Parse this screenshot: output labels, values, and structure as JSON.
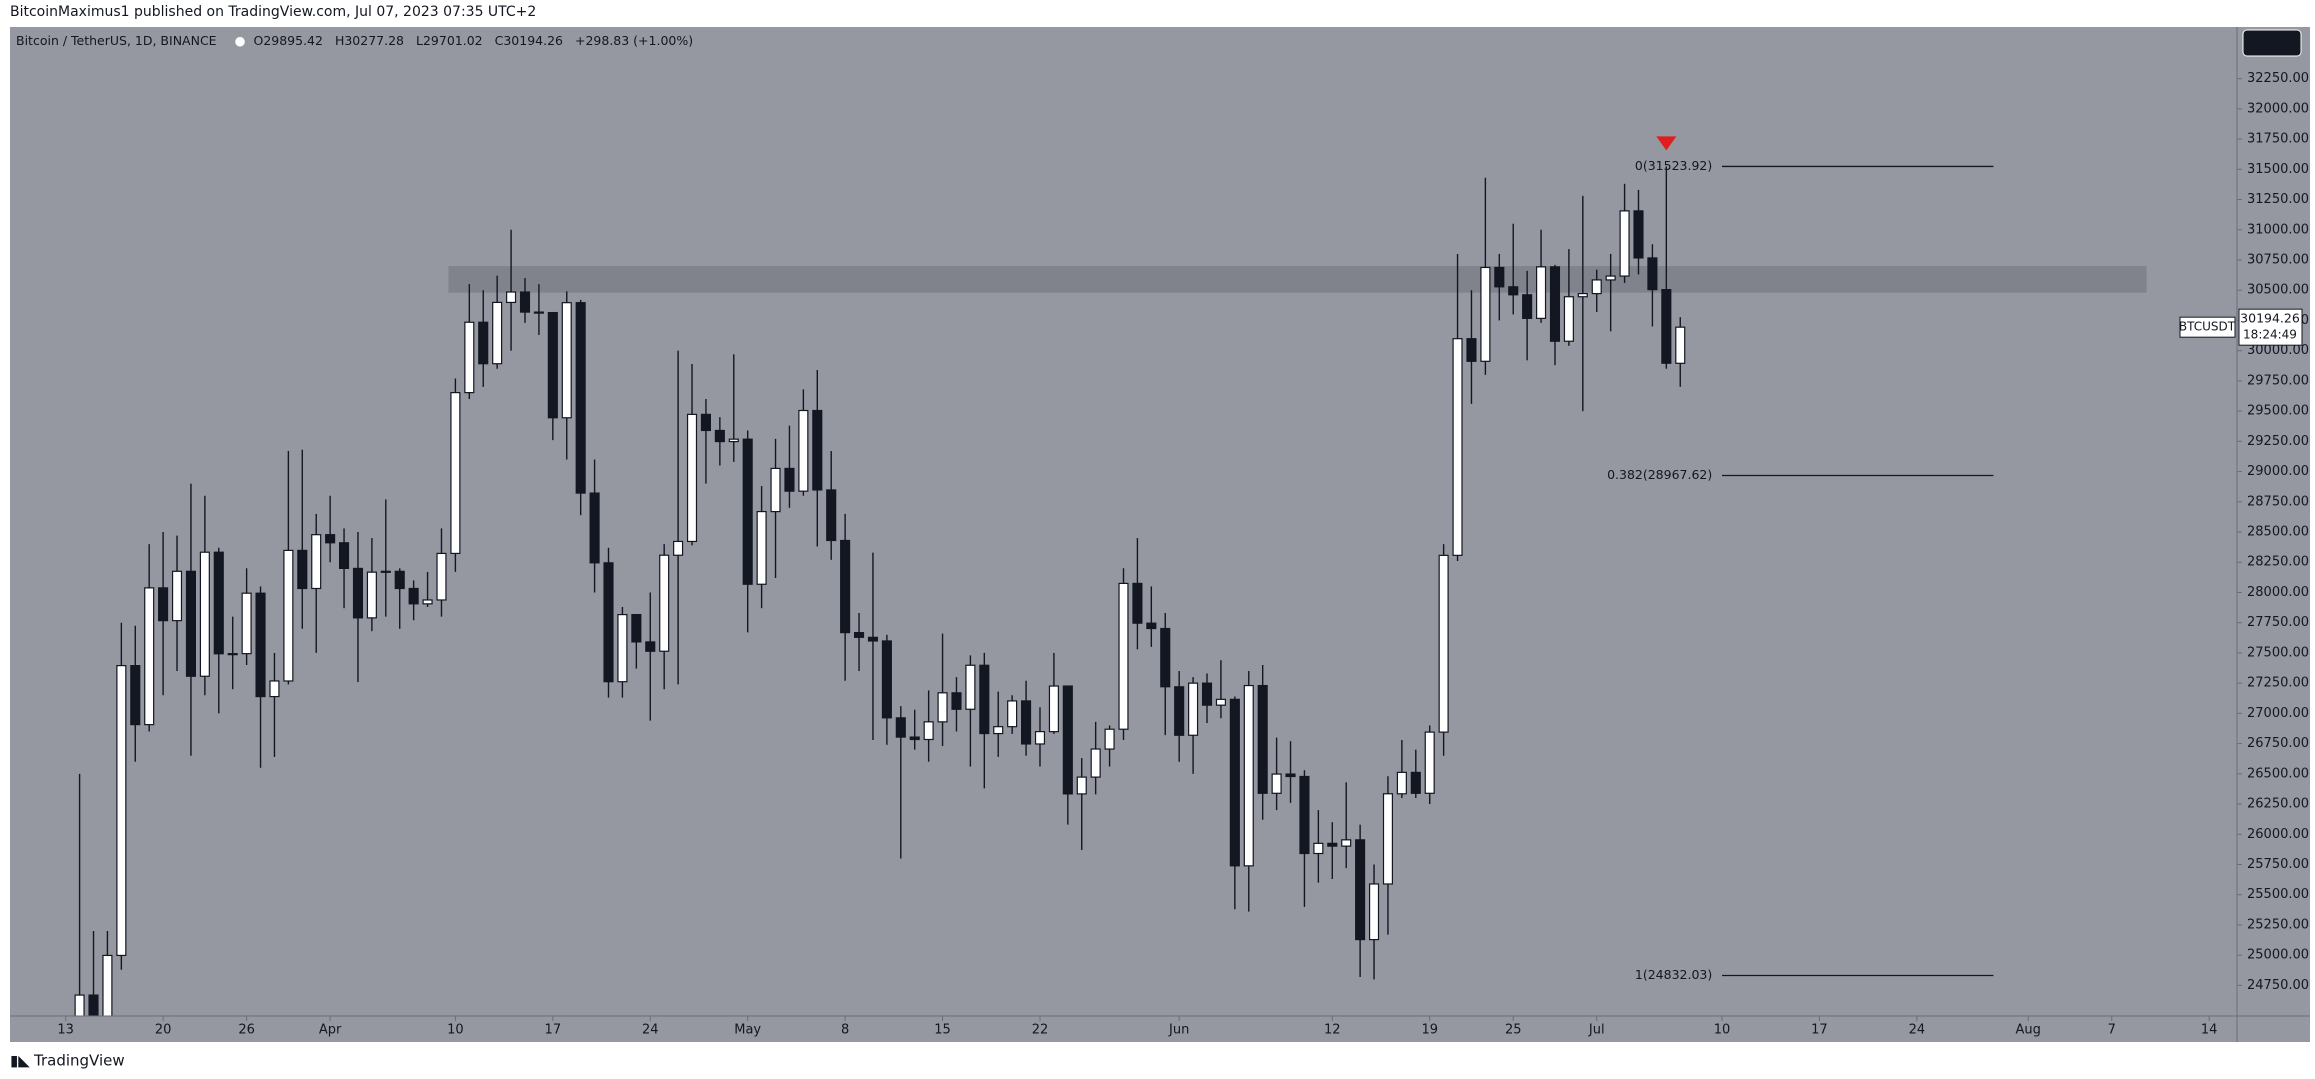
{
  "published": "BitcoinMaximus1 published on TradingView.com, Jul 07, 2023 07:35 UTC+2",
  "footer": "TradingView",
  "chart_data": {
    "type": "candlestick",
    "header": {
      "symbol": "Bitcoin / TetherUS, 1D, BINANCE",
      "ohlc": [
        {
          "label": "O",
          "value": 29895.42
        },
        {
          "label": "H",
          "value": 30277.28
        },
        {
          "label": "L",
          "value": 29701.02
        },
        {
          "label": "C",
          "value": 30194.26
        }
      ],
      "change": "+298.83 (+1.00%)"
    },
    "symbol_tag": "BTCUSDT",
    "countdown": "18:24:49",
    "up_color": "#ffffff",
    "down_color": "#131722",
    "background": "#9598a1",
    "zone_color": "#7c7f87",
    "resistance_zone": [
      30480,
      30700
    ],
    "open": [
      24110,
      24670,
      24285,
      24998,
      27395,
      26907,
      28038,
      27767,
      28175,
      27307,
      28333,
      27493,
      27494,
      27994,
      27139,
      27268,
      28348,
      28033,
      28478,
      28411,
      28199,
      27790,
      28168,
      28175,
      28033,
      27906,
      27938,
      28323,
      29653,
      30235,
      29892,
      30399,
      30485,
      30319,
      30315,
      29445,
      30397,
      28822,
      28245,
      27262,
      27817,
      27591,
      27514,
      28308,
      28422,
      29473,
      29340,
      29248,
      29268,
      28068,
      28669,
      29026,
      28838,
      29505,
      28848,
      28430,
      27668,
      27629,
      27599,
      26963,
      26804,
      26784,
      26930,
      27170,
      27034,
      27398,
      26833,
      26890,
      27103,
      26747,
      26849,
      27226,
      26334,
      26473,
      26705,
      26869,
      28075,
      27746,
      27702,
      27220,
      26819,
      27250,
      27068,
      27116,
      25739,
      27230,
      26339,
      26498,
      26478,
      25841,
      25925,
      25902,
      25954,
      25129,
      25589,
      26335,
      26512,
      26339,
      26845,
      28307,
      30099,
      29912,
      30688,
      30528,
      30462,
      30267,
      30693,
      30078,
      30446,
      30472,
      30585,
      30617,
      31156,
      30767,
      30505,
      29895.42
    ],
    "high": [
      26500,
      25200,
      25200,
      27750,
      27725,
      28400,
      28500,
      28470,
      28900,
      28800,
      28370,
      27800,
      28200,
      28050,
      27500,
      29170,
      29180,
      28650,
      28800,
      28530,
      28500,
      28450,
      28770,
      28200,
      28100,
      28170,
      28530,
      29770,
      30550,
      30500,
      30620,
      31000,
      30600,
      30550,
      30320,
      30490,
      30420,
      29100,
      28370,
      27880,
      27820,
      28000,
      28400,
      30000,
      29890,
      29600,
      29450,
      29970,
      29340,
      28880,
      29270,
      29380,
      29680,
      29840,
      29170,
      28650,
      27830,
      28330,
      27650,
      27060,
      27030,
      27190,
      27660,
      27300,
      27480,
      27500,
      27180,
      27150,
      27270,
      27050,
      27500,
      27230,
      26630,
      26930,
      26900,
      28200,
      28450,
      28050,
      27830,
      27350,
      27300,
      27330,
      27440,
      27140,
      27350,
      27400,
      26800,
      26770,
      26530,
      26200,
      26100,
      26430,
      26080,
      25750,
      26480,
      26780,
      26700,
      26900,
      28400,
      30800,
      30500,
      31430,
      30800,
      31050,
      30660,
      31000,
      30710,
      30840,
      31280,
      30670,
      30800,
      31380,
      31330,
      30880,
      31523.92,
      30277.28
    ],
    "low": [
      24050,
      23900,
      24120,
      24880,
      26600,
      26850,
      27150,
      27350,
      26650,
      27150,
      27000,
      27200,
      27400,
      26550,
      26640,
      27240,
      27700,
      27500,
      28250,
      27870,
      27260,
      27680,
      27800,
      27700,
      27770,
      27880,
      27800,
      28170,
      29600,
      29700,
      29850,
      30000,
      30230,
      30130,
      29260,
      29100,
      28640,
      28000,
      27130,
      27130,
      27370,
      26940,
      27200,
      27240,
      28390,
      28900,
      29050,
      29080,
      27670,
      27870,
      28120,
      28700,
      28800,
      28380,
      28270,
      27270,
      27350,
      26780,
      26740,
      25800,
      26700,
      26600,
      26730,
      26850,
      26560,
      26380,
      26640,
      26830,
      26650,
      26560,
      26830,
      26080,
      25870,
      26330,
      26560,
      26780,
      27530,
      27550,
      26820,
      26600,
      26500,
      26920,
      26960,
      25380,
      25360,
      26120,
      26200,
      26260,
      25400,
      25600,
      25630,
      25720,
      24820,
      24800,
      25170,
      26300,
      26300,
      26250,
      26650,
      28260,
      29560,
      29800,
      30250,
      30300,
      29920,
      30230,
      29880,
      30040,
      29500,
      30320,
      30160,
      30560,
      30630,
      30200,
      29850,
      29701.02
    ],
    "close": [
      24670,
      24285,
      24998,
      27395,
      26907,
      28038,
      27767,
      28175,
      27307,
      28333,
      27493,
      27494,
      27994,
      27139,
      27268,
      28348,
      28033,
      28478,
      28411,
      28199,
      27790,
      28168,
      28175,
      28033,
      27906,
      27938,
      28323,
      29653,
      30235,
      29892,
      30399,
      30485,
      30319,
      30315,
      29445,
      30397,
      28822,
      28245,
      27262,
      27817,
      27591,
      27514,
      28308,
      28422,
      29473,
      29340,
      29248,
      29268,
      28068,
      28669,
      29026,
      28838,
      29505,
      28848,
      28430,
      27668,
      27629,
      27599,
      26963,
      26804,
      26784,
      26930,
      27170,
      27034,
      27398,
      26833,
      26890,
      27103,
      26747,
      26849,
      27226,
      26334,
      26473,
      26705,
      26869,
      28075,
      27746,
      27702,
      27220,
      26819,
      27250,
      27068,
      27116,
      25739,
      27230,
      26339,
      26498,
      26478,
      25841,
      25925,
      25902,
      25954,
      25129,
      25589,
      26335,
      26512,
      26339,
      26845,
      28307,
      30099,
      29912,
      30688,
      30528,
      30462,
      30267,
      30693,
      30078,
      30446,
      30472,
      30585,
      30617,
      31156,
      30767,
      30505,
      29896,
      30194.26
    ],
    "fib_levels": [
      {
        "label": "0(31523.92)",
        "value": 31523.92
      },
      {
        "label": "0.382(28967.62)",
        "value": 28967.62
      },
      {
        "label": "1(24832.03)",
        "value": 24832.03
      }
    ],
    "xlim": [
      -5,
      155
    ],
    "ylim": [
      24497,
      32677
    ],
    "xticks": [
      {
        "value": -1,
        "label": "13"
      },
      {
        "value": 6,
        "label": "20"
      },
      {
        "value": 12,
        "label": "26"
      },
      {
        "value": 18,
        "label": "Apr"
      },
      {
        "value": 27,
        "label": "10"
      },
      {
        "value": 34,
        "label": "17"
      },
      {
        "value": 41,
        "label": "24"
      },
      {
        "value": 48,
        "label": "May"
      },
      {
        "value": 55,
        "label": "8"
      },
      {
        "value": 62,
        "label": "15"
      },
      {
        "value": 69,
        "label": "22"
      },
      {
        "value": 79,
        "label": "Jun"
      },
      {
        "value": 90,
        "label": "12"
      },
      {
        "value": 97,
        "label": "19"
      },
      {
        "value": 103,
        "label": "25"
      },
      {
        "value": 109,
        "label": "Jul"
      },
      {
        "value": 118,
        "label": "10"
      },
      {
        "value": 125,
        "label": "17"
      },
      {
        "value": 132,
        "label": "24"
      },
      {
        "value": 140,
        "label": "Aug"
      },
      {
        "value": 146,
        "label": "7"
      },
      {
        "value": 153,
        "label": "14"
      }
    ],
    "yticks": [
      {
        "value": 24750,
        "label": "24750.00"
      },
      {
        "value": 25000,
        "label": "25000.00"
      },
      {
        "value": 25250,
        "label": "25250.00"
      },
      {
        "value": 25500,
        "label": "25500.00"
      },
      {
        "value": 25750,
        "label": "25750.00"
      },
      {
        "value": 26000,
        "label": "26000.00"
      },
      {
        "value": 26250,
        "label": "26250.00"
      },
      {
        "value": 26500,
        "label": "26500.00"
      },
      {
        "value": 26750,
        "label": "26750.00"
      },
      {
        "value": 27000,
        "label": "27000.00"
      },
      {
        "value": 27250,
        "label": "27250.00"
      },
      {
        "value": 27500,
        "label": "27500.00"
      },
      {
        "value": 27750,
        "label": "27750.00"
      },
      {
        "value": 28000,
        "label": "28000.00"
      },
      {
        "value": 28250,
        "label": "28250.00"
      },
      {
        "value": 28500,
        "label": "28500.00"
      },
      {
        "value": 28750,
        "label": "28750.00"
      },
      {
        "value": 29000,
        "label": "29000.00"
      },
      {
        "value": 29250,
        "label": "29250.00"
      },
      {
        "value": 29500,
        "label": "29500.00"
      },
      {
        "value": 29750,
        "label": "29750.00"
      },
      {
        "value": 30000,
        "label": "30000.00"
      },
      {
        "value": 30250,
        "label": "30250.00"
      },
      {
        "value": 30500,
        "label": "30500.00"
      },
      {
        "value": 30750,
        "label": "30750.00"
      },
      {
        "value": 31000,
        "label": "31000.00"
      },
      {
        "value": 31250,
        "label": "31250.00"
      },
      {
        "value": 31500,
        "label": "31500.00"
      },
      {
        "value": 31750,
        "label": "31750.00"
      },
      {
        "value": 32000,
        "label": "32000.00"
      },
      {
        "value": 32250,
        "label": "32250.00"
      }
    ]
  }
}
